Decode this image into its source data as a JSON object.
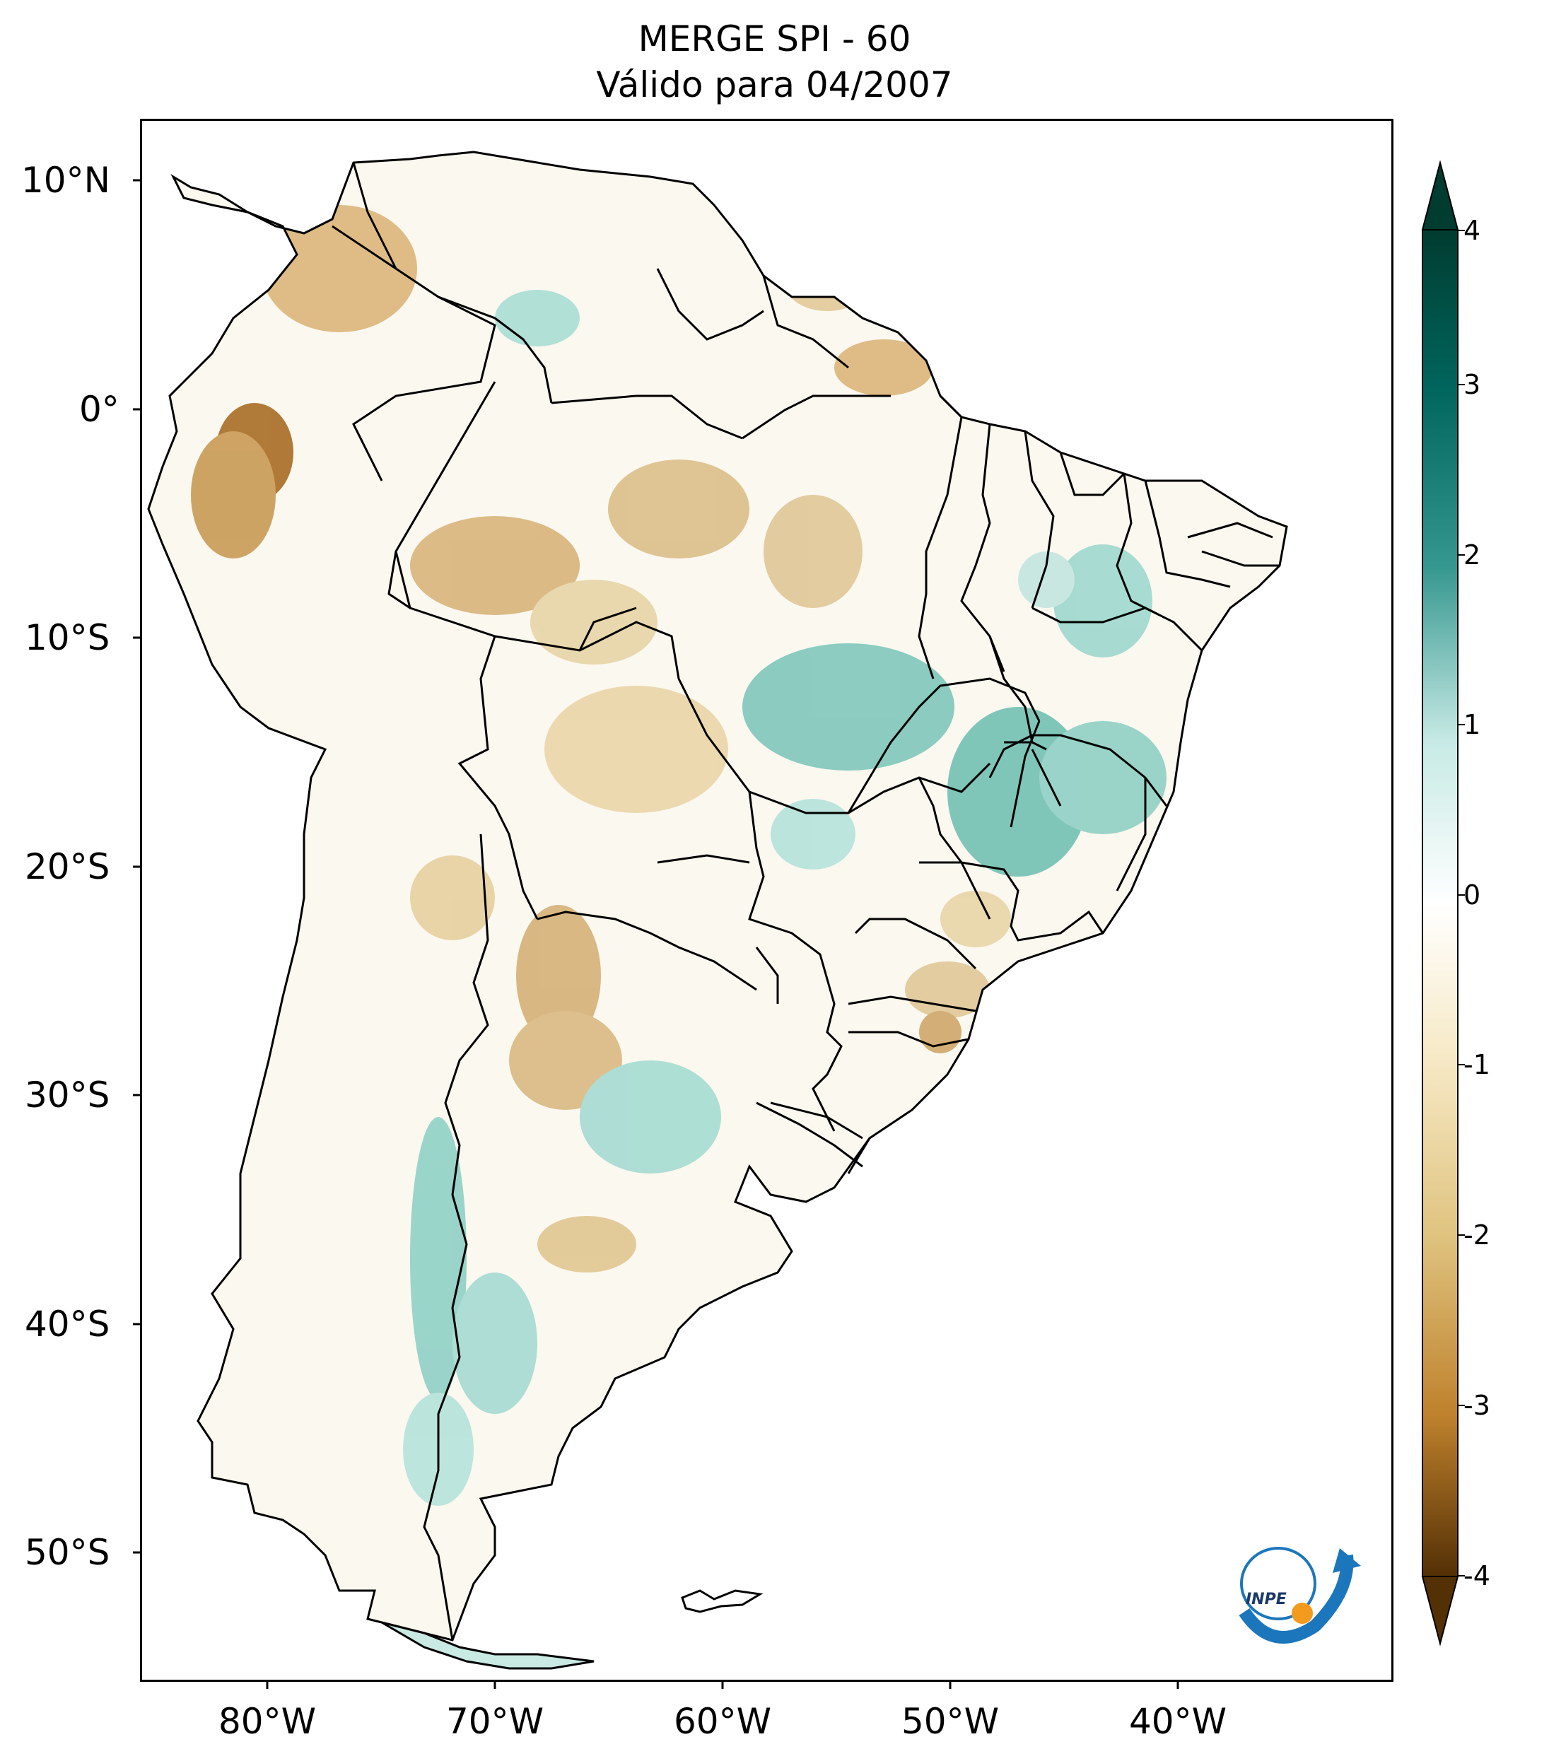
{
  "header": {
    "title_line1": "MERGE   SPI - 60",
    "title_line2": "Válido para 04/2007"
  },
  "map": {
    "region": "South America",
    "lat_labels": [
      "10°N",
      "0°",
      "10°S",
      "20°S",
      "30°S",
      "40°S",
      "50°S"
    ],
    "lon_labels": [
      "80°W",
      "70°W",
      "60°W",
      "50°W",
      "40°W"
    ],
    "colors": {
      "ocean": "#ffffff",
      "borders": "#000000"
    }
  },
  "colorbar": {
    "ticks": [
      "4",
      "3",
      "2",
      "1",
      "0",
      "-1",
      "-2",
      "-3",
      "-4"
    ],
    "colors": {
      "max": "#003c30",
      "high": "#35978f",
      "mid_high": "#c7eae5",
      "zero": "#ffffff",
      "mid_low": "#f6e8c3",
      "low": "#bf812d",
      "min": "#543005"
    }
  },
  "logo": {
    "text": "INPE"
  }
}
